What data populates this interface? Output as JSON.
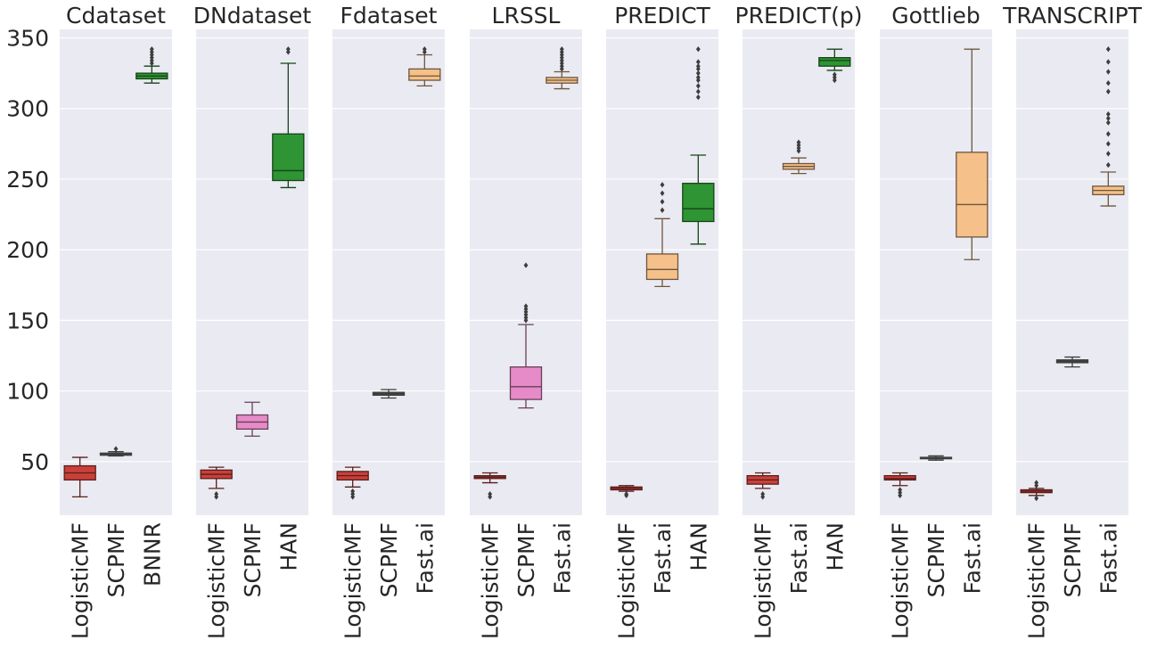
{
  "chart_data": {
    "type": "box",
    "shared_y": false,
    "first_axis_ticks": [
      "50",
      "100",
      "150",
      "200",
      "250",
      "300",
      "350"
    ],
    "first_axis_tick_values": [
      50,
      100,
      150,
      200,
      250,
      300,
      350
    ],
    "colors": {
      "LogisticMF": "#c9403a",
      "SCPMF": "#e68bc7",
      "BNNR": "#2f9433",
      "HAN": "#2f9433",
      "Fast.ai": "#f5c089",
      "gray": "#4a4a4a"
    },
    "panels": [
      {
        "title": "Cdataset",
        "ylim": [
          12,
          356
        ],
        "boxes": [
          {
            "label": "LogisticMF",
            "color_key": "LogisticMF",
            "whislo": 25,
            "q1": 37,
            "med": 42,
            "q3": 47,
            "whishi": 53,
            "fliers": []
          },
          {
            "label": "SCPMF",
            "color_key": "gray",
            "whislo": 54,
            "q1": 54.5,
            "med": 55,
            "q3": 56,
            "whishi": 57,
            "fliers": [
              59
            ]
          },
          {
            "label": "BNNR",
            "color_key": "BNNR",
            "whislo": 318,
            "q1": 321,
            "med": 323,
            "q3": 325,
            "whishi": 330,
            "fliers": [
              332,
              334,
              336,
              338,
              340,
              342
            ]
          }
        ]
      },
      {
        "title": "DNdataset",
        "ylim": [
          12,
          356
        ],
        "boxes": [
          {
            "label": "LogisticMF",
            "color_key": "LogisticMF",
            "whislo": 31,
            "q1": 38,
            "med": 41,
            "q3": 44,
            "whishi": 46,
            "fliers": [
              25,
              27
            ]
          },
          {
            "label": "SCPMF",
            "color_key": "SCPMF",
            "whislo": 68,
            "q1": 73,
            "med": 78,
            "q3": 83,
            "whishi": 92,
            "fliers": []
          },
          {
            "label": "HAN",
            "color_key": "HAN",
            "whislo": 244,
            "q1": 249,
            "med": 256,
            "q3": 282,
            "whishi": 332,
            "fliers": [
              340,
              342
            ]
          }
        ]
      },
      {
        "title": "Fdataset",
        "ylim": [
          12,
          356
        ],
        "boxes": [
          {
            "label": "LogisticMF",
            "color_key": "LogisticMF",
            "whislo": 32,
            "q1": 37,
            "med": 40,
            "q3": 43,
            "whishi": 46,
            "fliers": [
              25,
              27,
              29
            ]
          },
          {
            "label": "SCPMF",
            "color_key": "gray",
            "whislo": 95,
            "q1": 97,
            "med": 98,
            "q3": 99,
            "whishi": 101,
            "fliers": []
          },
          {
            "label": "Fast.ai",
            "color_key": "Fast.ai",
            "whislo": 316,
            "q1": 320,
            "med": 323,
            "q3": 328,
            "whishi": 338,
            "fliers": [
              340,
              342
            ]
          }
        ]
      },
      {
        "title": "LRSSL",
        "ylim": [
          12,
          356
        ],
        "boxes": [
          {
            "label": "LogisticMF",
            "color_key": "LogisticMF",
            "whislo": 35,
            "q1": 38,
            "med": 39,
            "q3": 40,
            "whishi": 42,
            "fliers": [
              25,
              27
            ]
          },
          {
            "label": "SCPMF",
            "color_key": "SCPMF",
            "whislo": 88,
            "q1": 94,
            "med": 103,
            "q3": 117,
            "whishi": 147,
            "fliers": [
              150,
              152,
              154,
              156,
              158,
              160,
              189
            ]
          },
          {
            "label": "Fast.ai",
            "color_key": "Fast.ai",
            "whislo": 314,
            "q1": 318,
            "med": 320,
            "q3": 322,
            "whishi": 326,
            "fliers": [
              328,
              330,
              332,
              334,
              336,
              338,
              340,
              342
            ]
          }
        ]
      },
      {
        "title": "PREDICT",
        "ylim": [
          12,
          356
        ],
        "boxes": [
          {
            "label": "LogisticMF",
            "color_key": "LogisticMF",
            "whislo": 29,
            "q1": 30,
            "med": 31,
            "q3": 32,
            "whishi": 33,
            "fliers": [
              26,
              27
            ]
          },
          {
            "label": "Fast.ai",
            "color_key": "Fast.ai",
            "whislo": 174,
            "q1": 179,
            "med": 186,
            "q3": 197,
            "whishi": 222,
            "fliers": [
              228,
              234,
              240,
              246
            ]
          },
          {
            "label": "HAN",
            "color_key": "HAN",
            "whislo": 204,
            "q1": 220,
            "med": 229,
            "q3": 247,
            "whishi": 267,
            "fliers": [
              308,
              312,
              316,
              320,
              322,
              325,
              328,
              330,
              333,
              342
            ]
          }
        ]
      },
      {
        "title": "PREDICT(p)",
        "ylim": [
          12,
          356
        ],
        "boxes": [
          {
            "label": "LogisticMF",
            "color_key": "LogisticMF",
            "whislo": 31,
            "q1": 34,
            "med": 37,
            "q3": 40,
            "whishi": 42,
            "fliers": [
              25,
              27
            ]
          },
          {
            "label": "Fast.ai",
            "color_key": "Fast.ai",
            "whislo": 254,
            "q1": 257,
            "med": 259,
            "q3": 261,
            "whishi": 265,
            "fliers": [
              270,
              272,
              274,
              276
            ]
          },
          {
            "label": "HAN",
            "color_key": "HAN",
            "whislo": 327,
            "q1": 330,
            "med": 334,
            "q3": 336,
            "whishi": 342,
            "fliers": [
              320,
              322,
              324
            ]
          }
        ]
      },
      {
        "title": "Gottlieb",
        "ylim": [
          12,
          356
        ],
        "boxes": [
          {
            "label": "LogisticMF",
            "color_key": "LogisticMF",
            "whislo": 33,
            "q1": 37,
            "med": 38,
            "q3": 40,
            "whishi": 42,
            "fliers": [
              26,
              28,
              30
            ]
          },
          {
            "label": "SCPMF",
            "color_key": "gray",
            "whislo": 51,
            "q1": 52,
            "med": 52.5,
            "q3": 53,
            "whishi": 54,
            "fliers": []
          },
          {
            "label": "Fast.ai",
            "color_key": "Fast.ai",
            "whislo": 193,
            "q1": 209,
            "med": 232,
            "q3": 269,
            "whishi": 342,
            "fliers": []
          }
        ]
      },
      {
        "title": "TRANSCRIPT",
        "ylim": [
          12,
          356
        ],
        "boxes": [
          {
            "label": "LogisticMF",
            "color_key": "LogisticMF",
            "whislo": 26,
            "q1": 28,
            "med": 29,
            "q3": 30,
            "whishi": 31,
            "fliers": [
              24,
              33,
              35
            ]
          },
          {
            "label": "SCPMF",
            "color_key": "gray",
            "whislo": 117,
            "q1": 120,
            "med": 121,
            "q3": 122,
            "whishi": 124,
            "fliers": []
          },
          {
            "label": "Fast.ai",
            "color_key": "Fast.ai",
            "whislo": 231,
            "q1": 239,
            "med": 242,
            "q3": 245,
            "whishi": 255,
            "fliers": [
              260,
              268,
              275,
              282,
              290,
              293,
              296,
              312,
              318,
              326,
              333,
              342
            ]
          }
        ]
      }
    ]
  }
}
